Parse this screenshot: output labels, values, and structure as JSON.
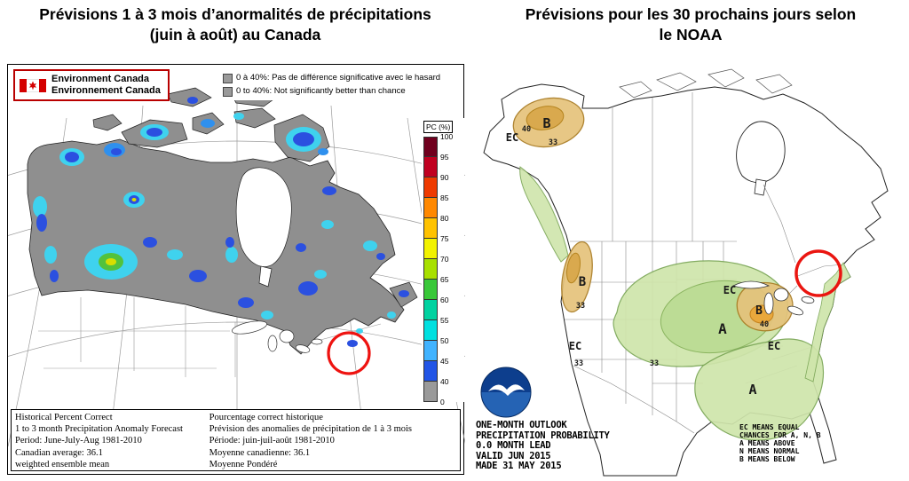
{
  "left_panel": {
    "title": {
      "line1": "Prévisions 1 à 3 mois d’anormalités de précipitations",
      "line2": "(juin à août) au Canada"
    },
    "logo": {
      "line1": "Environment Canada",
      "line2": "Environnement Canada"
    },
    "chance_legend": {
      "fr": "0 à 40%: Pas de différence significative avec le hasard",
      "en": "0 to 40%: Not significantly better than chance"
    },
    "colorbar": {
      "title": "PC (%)",
      "boundary_labels": [
        "100",
        "95",
        "90",
        "85",
        "80",
        "75",
        "70",
        "65",
        "60",
        "55",
        "50",
        "45",
        "40",
        "0"
      ],
      "segment_colors_top_to_bottom": [
        "#70001e",
        "#c00020",
        "#ee3a00",
        "#ff8800",
        "#ffc200",
        "#f2f200",
        "#a8e000",
        "#39c839",
        "#00d2a0",
        "#00e0e0",
        "#41b3ff",
        "#2255e6",
        "#9a9a9a"
      ]
    },
    "footer_en": [
      "Historical Percent Correct",
      "1 to 3 month Precipitation Anomaly Forecast",
      "Period: June-July-Aug 1981-2010",
      "Canadian average: 36.1",
      "weighted ensemble mean"
    ],
    "footer_fr": [
      "Pourcentage correct historique",
      "Prévision des anomalies de précipitation de 1 à 3 mois",
      "Période: juin-juil-août 1981-2010",
      "Moyenne canadienne: 36.1",
      "Moyenne Pondéré"
    ],
    "no_data_color": "#9a9a9a",
    "annotation_color": "#ee1310"
  },
  "right_panel": {
    "title": {
      "line1": "Prévisions pour les 30 prochains jours selon",
      "line2": "le NOAA"
    },
    "info_lines": [
      "ONE-MONTH OUTLOOK",
      "PRECIPITATION PROBABILITY",
      "0.0 MONTH LEAD",
      "VALID JUN 2015",
      "MADE 31 MAY 2015"
    ],
    "legend_lines": [
      "EC MEANS EQUAL",
      "CHANCES FOR A, N, B",
      "A MEANS ABOVE",
      "N MEANS NORMAL",
      "B MEANS BELOW"
    ],
    "map_labels": [
      {
        "text": "EC"
      },
      {
        "text": "B"
      },
      {
        "text": "40"
      },
      {
        "text": "33"
      },
      {
        "text": "B"
      },
      {
        "text": "33"
      },
      {
        "text": "EC"
      },
      {
        "text": "33"
      },
      {
        "text": "A"
      },
      {
        "text": "33"
      },
      {
        "text": "EC"
      },
      {
        "text": "B"
      },
      {
        "text": "40"
      },
      {
        "text": "EC"
      },
      {
        "text": "A"
      }
    ],
    "region_colors": {
      "above_normal_green": "#cfe5ab",
      "below_normal_tan": "#e5c37b"
    },
    "annotation_color": "#ea1510"
  }
}
